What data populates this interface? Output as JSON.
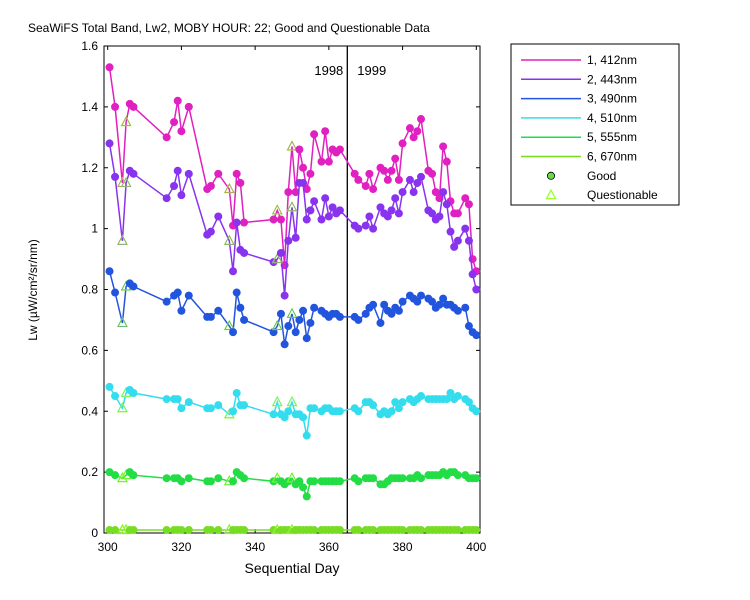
{
  "chart_data": {
    "type": "line",
    "title": "SeaWiFS Total Band,  Lw2, MOBY HOUR: 22;  Good and Questionable Data",
    "xlabel": "Sequential Day",
    "ylabel": "Lw (µW/cm²/sr/nm)",
    "xlim": [
      299,
      401
    ],
    "ylim": [
      0,
      1.6
    ],
    "xticks": [
      300,
      320,
      340,
      360,
      380,
      400
    ],
    "yticks": [
      0,
      0.2,
      0.4,
      0.6,
      0.8,
      1,
      1.2,
      1.4,
      1.6
    ],
    "ytick_labels": [
      "0",
      "0.2",
      "0.4",
      "0.6",
      "0.8",
      "1",
      "1.2",
      "1.4",
      "1.6"
    ],
    "year_divider_x": 365,
    "year_labels": [
      "1998",
      "1999"
    ],
    "grid": false,
    "legend_position": "outside-right",
    "legend_marker_labels": [
      "Good",
      "Questionable"
    ],
    "marker_colors": {
      "good_fill": "#66dd44",
      "questionable_stroke": "#99ff33"
    },
    "x": [
      300.5,
      302,
      304,
      305,
      306,
      307,
      316,
      318,
      319,
      320,
      322,
      327,
      328,
      330,
      333,
      334,
      335,
      336,
      337,
      345,
      346,
      347,
      348,
      349,
      350,
      351,
      352,
      353,
      354,
      355,
      356,
      358,
      359,
      360,
      361,
      362,
      363,
      367,
      368,
      370,
      371,
      372,
      374,
      375,
      376,
      377,
      378,
      379,
      380,
      382,
      383,
      384,
      385,
      387,
      388,
      389,
      390,
      391,
      392,
      393,
      394,
      395,
      397,
      398,
      399,
      400
    ],
    "questionable_x": [
      304,
      305,
      333,
      346,
      350
    ],
    "series": [
      {
        "name": "1, 412nm",
        "color": "#e020c0",
        "values": [
          1.53,
          1.4,
          1.15,
          1.35,
          1.41,
          1.4,
          1.3,
          1.35,
          1.42,
          1.32,
          1.4,
          1.13,
          1.14,
          1.18,
          1.13,
          1.01,
          1.18,
          1.15,
          1.02,
          1.03,
          1.06,
          1.03,
          0.88,
          1.12,
          1.27,
          1.12,
          1.26,
          1.2,
          1.13,
          1.18,
          1.31,
          1.22,
          1.32,
          1.22,
          1.26,
          1.25,
          1.26,
          1.18,
          1.16,
          1.14,
          1.18,
          1.13,
          1.2,
          1.19,
          1.16,
          1.19,
          1.23,
          1.16,
          1.28,
          1.33,
          1.3,
          1.32,
          1.36,
          1.19,
          1.18,
          1.12,
          1.1,
          1.27,
          1.22,
          1.09,
          1.05,
          1.05,
          1.1,
          1.08,
          0.9,
          0.86
        ]
      },
      {
        "name": "2, 443nm",
        "color": "#8833ee",
        "values": [
          1.28,
          1.17,
          0.96,
          1.15,
          1.19,
          1.18,
          1.1,
          1.14,
          1.19,
          1.11,
          1.18,
          0.98,
          0.99,
          1.04,
          0.96,
          0.86,
          1.02,
          0.93,
          0.92,
          0.89,
          0.9,
          0.92,
          0.78,
          0.96,
          1.07,
          0.97,
          1.15,
          1.15,
          1.03,
          1.06,
          1.09,
          1.03,
          1.1,
          1.04,
          1.07,
          1.05,
          1.06,
          1.01,
          1.0,
          1.01,
          1.04,
          1.0,
          1.07,
          1.05,
          1.04,
          1.06,
          1.1,
          1.05,
          1.12,
          1.16,
          1.12,
          1.15,
          1.17,
          1.06,
          1.05,
          1.03,
          1.04,
          1.12,
          1.08,
          0.99,
          0.94,
          0.96,
          1.0,
          0.96,
          0.85,
          0.8
        ]
      },
      {
        "name": "3, 490nm",
        "color": "#2255dd",
        "values": [
          0.86,
          0.79,
          0.69,
          0.81,
          0.82,
          0.81,
          0.76,
          0.78,
          0.79,
          0.73,
          0.78,
          0.71,
          0.71,
          0.73,
          0.68,
          0.66,
          0.79,
          0.74,
          0.7,
          0.66,
          0.68,
          0.72,
          0.62,
          0.68,
          0.72,
          0.66,
          0.7,
          0.73,
          0.64,
          0.69,
          0.74,
          0.73,
          0.72,
          0.71,
          0.72,
          0.72,
          0.71,
          0.71,
          0.7,
          0.72,
          0.74,
          0.75,
          0.69,
          0.75,
          0.73,
          0.72,
          0.74,
          0.73,
          0.76,
          0.78,
          0.77,
          0.76,
          0.78,
          0.77,
          0.76,
          0.74,
          0.75,
          0.77,
          0.75,
          0.75,
          0.74,
          0.73,
          0.74,
          0.68,
          0.66,
          0.65
        ]
      },
      {
        "name": "4, 510nm",
        "color": "#33ddee",
        "values": [
          0.48,
          0.45,
          0.41,
          0.46,
          0.47,
          0.46,
          0.44,
          0.44,
          0.44,
          0.41,
          0.43,
          0.41,
          0.41,
          0.42,
          0.39,
          0.4,
          0.46,
          0.42,
          0.42,
          0.39,
          0.43,
          0.39,
          0.38,
          0.4,
          0.43,
          0.39,
          0.39,
          0.38,
          0.32,
          0.41,
          0.41,
          0.4,
          0.41,
          0.41,
          0.4,
          0.4,
          0.4,
          0.41,
          0.4,
          0.43,
          0.43,
          0.42,
          0.39,
          0.4,
          0.39,
          0.4,
          0.43,
          0.41,
          0.43,
          0.44,
          0.43,
          0.44,
          0.45,
          0.44,
          0.44,
          0.44,
          0.44,
          0.44,
          0.44,
          0.46,
          0.44,
          0.45,
          0.44,
          0.43,
          0.41,
          0.4
        ]
      },
      {
        "name": "5, 555nm",
        "color": "#22dd44",
        "values": [
          0.2,
          0.19,
          0.18,
          0.19,
          0.2,
          0.19,
          0.18,
          0.18,
          0.18,
          0.17,
          0.18,
          0.17,
          0.17,
          0.18,
          0.17,
          0.17,
          0.2,
          0.19,
          0.18,
          0.17,
          0.18,
          0.17,
          0.16,
          0.17,
          0.18,
          0.16,
          0.17,
          0.15,
          0.12,
          0.17,
          0.17,
          0.17,
          0.17,
          0.17,
          0.17,
          0.17,
          0.17,
          0.18,
          0.17,
          0.18,
          0.18,
          0.18,
          0.16,
          0.16,
          0.17,
          0.18,
          0.18,
          0.18,
          0.18,
          0.18,
          0.18,
          0.19,
          0.18,
          0.19,
          0.19,
          0.19,
          0.19,
          0.2,
          0.19,
          0.2,
          0.2,
          0.19,
          0.19,
          0.18,
          0.18,
          0.18
        ]
      },
      {
        "name": "6, 670nm",
        "color": "#77dd22",
        "values": [
          0.01,
          0.01,
          0.01,
          0.01,
          0.01,
          0.01,
          0.01,
          0.01,
          0.01,
          0.01,
          0.01,
          0.01,
          0.01,
          0.01,
          0.01,
          0.01,
          0.01,
          0.01,
          0.01,
          0.01,
          0.01,
          0.01,
          0.01,
          0.01,
          0.01,
          0.01,
          0.01,
          0.01,
          0.01,
          0.01,
          0.01,
          0.01,
          0.01,
          0.01,
          0.01,
          0.01,
          0.01,
          0.01,
          0.01,
          0.01,
          0.01,
          0.01,
          0.01,
          0.01,
          0.01,
          0.01,
          0.01,
          0.01,
          0.01,
          0.01,
          0.01,
          0.01,
          0.01,
          0.01,
          0.01,
          0.01,
          0.01,
          0.01,
          0.01,
          0.01,
          0.01,
          0.01,
          0.01,
          0.01,
          0.01,
          0.01
        ]
      }
    ]
  }
}
